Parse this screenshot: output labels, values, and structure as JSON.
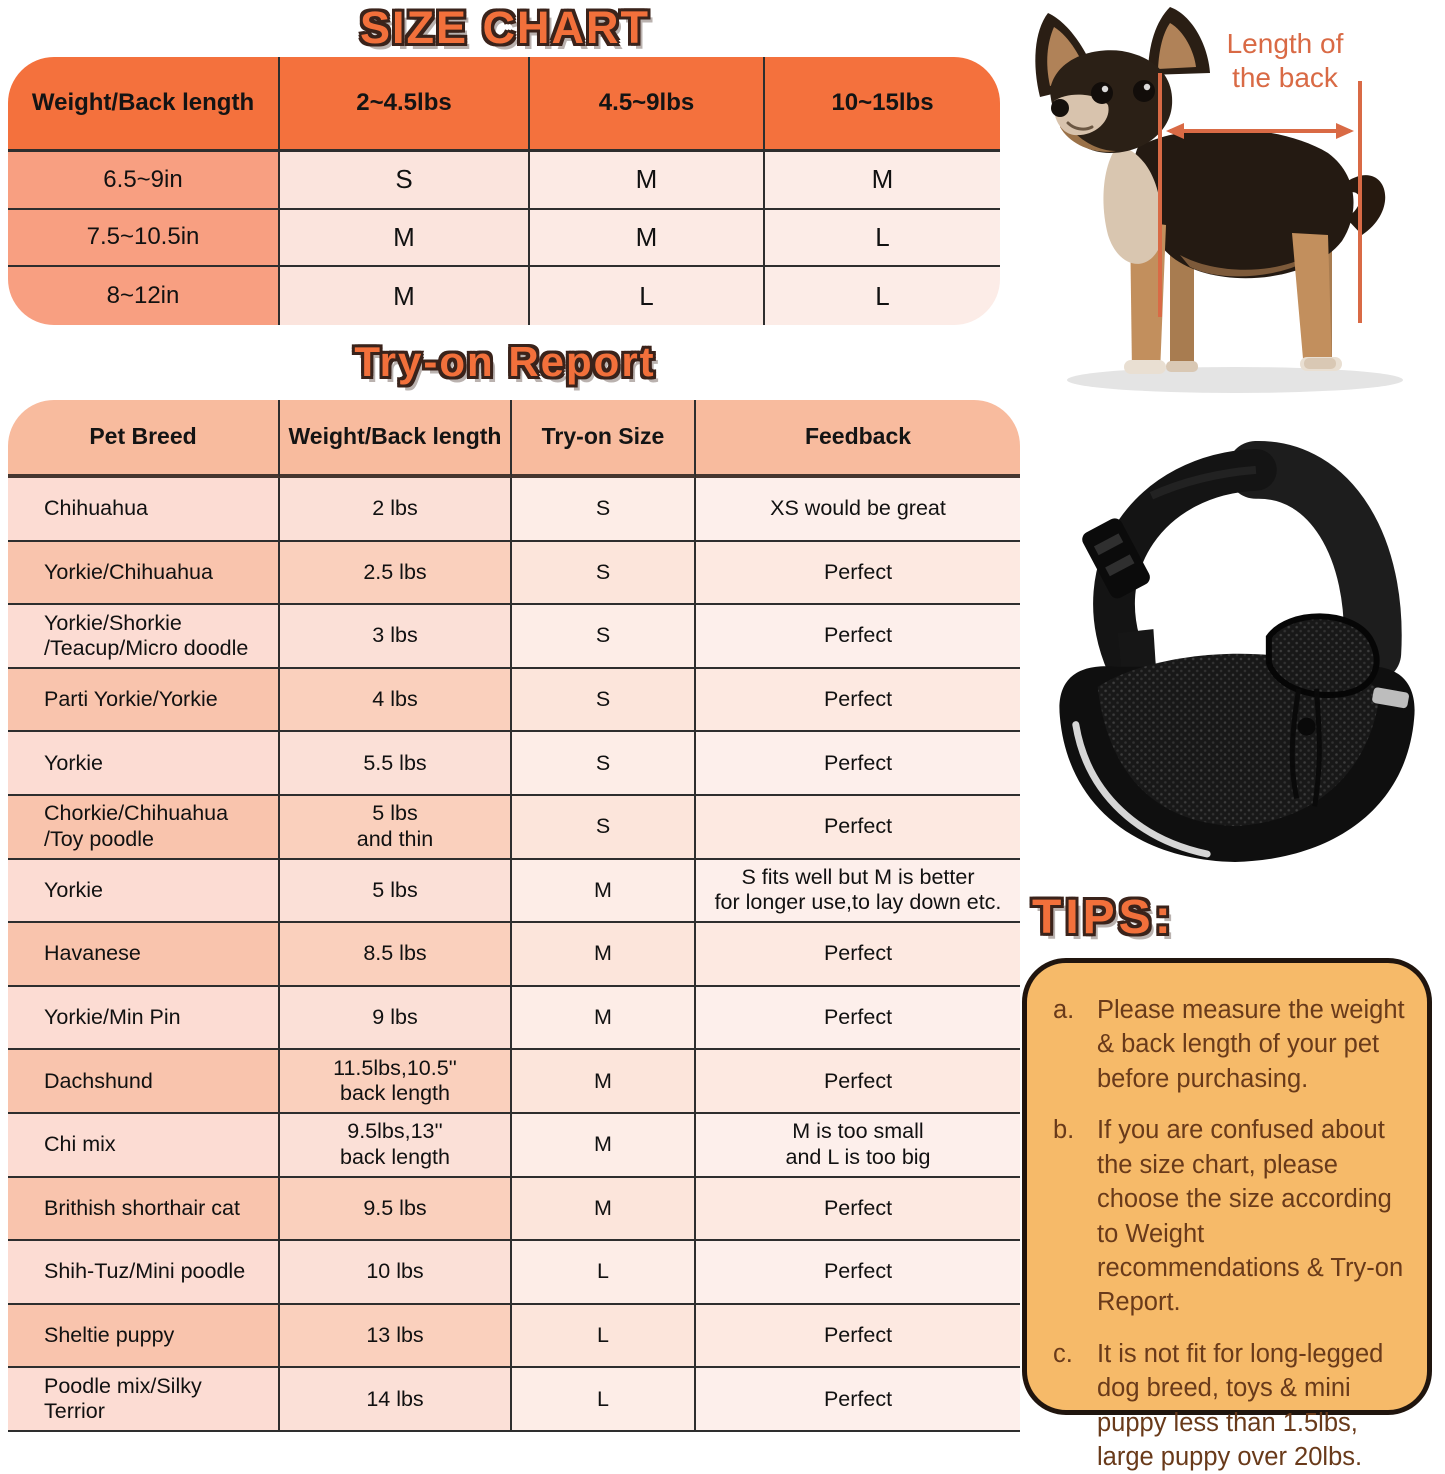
{
  "size_chart": {
    "title": "SIZE CHART",
    "columns": [
      "Weight/Back length",
      "2~4.5lbs",
      "4.5~9lbs",
      "10~15lbs"
    ],
    "rows": [
      {
        "label": "6.5~9in",
        "values": [
          "S",
          "M",
          "M"
        ]
      },
      {
        "label": "7.5~10.5in",
        "values": [
          "M",
          "M",
          "L"
        ]
      },
      {
        "label": "8~12in",
        "values": [
          "M",
          "L",
          "L"
        ]
      }
    ]
  },
  "tryon_report": {
    "title": "Try-on Report",
    "columns": [
      "Pet Breed",
      "Weight/Back length",
      "Try-on Size",
      "Feedback"
    ],
    "rows": [
      [
        "Chihuahua",
        "2 lbs",
        "S",
        "XS would be great"
      ],
      [
        "Yorkie/Chihuahua",
        "2.5 lbs",
        "S",
        "Perfect"
      ],
      [
        "Yorkie/Shorkie\n/Teacup/Micro doodle",
        "3 lbs",
        "S",
        "Perfect"
      ],
      [
        "Parti Yorkie/Yorkie",
        "4 lbs",
        "S",
        "Perfect"
      ],
      [
        "Yorkie",
        "5.5 lbs",
        "S",
        "Perfect"
      ],
      [
        "Chorkie/Chihuahua\n/Toy poodle",
        "5 lbs\nand thin",
        "S",
        "Perfect"
      ],
      [
        "Yorkie",
        "5 lbs",
        "M",
        "S fits well but M is better\nfor longer use,to lay down etc."
      ],
      [
        "Havanese",
        "8.5 lbs",
        "M",
        "Perfect"
      ],
      [
        "Yorkie/Min Pin",
        "9 lbs",
        "M",
        "Perfect"
      ],
      [
        "Dachshund",
        "11.5lbs,10.5''\nback length",
        "M",
        "Perfect"
      ],
      [
        "Chi mix",
        "9.5lbs,13''\nback length",
        "M",
        "M is too small\nand L is too big"
      ],
      [
        "Brithish shorthair cat",
        "9.5 lbs",
        "M",
        "Perfect"
      ],
      [
        "Shih-Tuz/Mini poodle",
        "10 lbs",
        "L",
        "Perfect"
      ],
      [
        "Sheltie puppy",
        "13 lbs",
        "L",
        "Perfect"
      ],
      [
        "Poodle mix/Silky\n Terrior",
        "14 lbs",
        "L",
        "Perfect"
      ]
    ]
  },
  "measurement": {
    "label": "Length of\nthe back"
  },
  "tips": {
    "title": "TIPS:",
    "items": [
      {
        "marker": "a.",
        "text": "Please measure the weight & back length of your pet before purchasing."
      },
      {
        "marker": "b.",
        "text": "If you are confused about the size chart, please choose the size according to Weight recommendations & Try-on Report."
      },
      {
        "marker": "c.",
        "text": "It is not fit for long-legged dog breed, toys & mini puppy less than 1.5lbs, large puppy over 20lbs."
      }
    ]
  },
  "colors": {
    "header_orange": "#f4713d",
    "salmon": "#f89f81",
    "tryon_header_peach": "#f8bb9e",
    "tips_bg": "#f6ba69",
    "annotation_orange": "#d96a45",
    "title_orange": "#f2703b"
  }
}
